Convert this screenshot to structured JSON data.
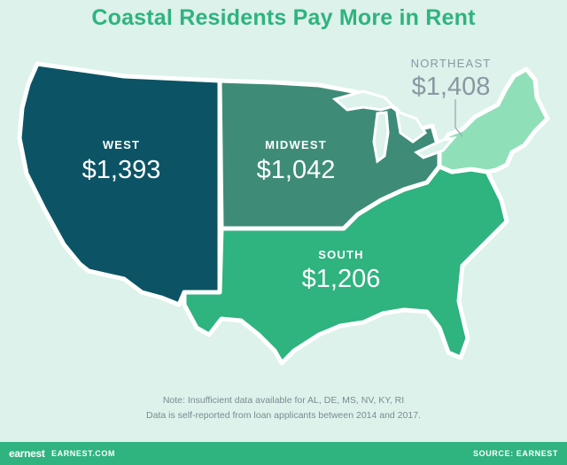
{
  "title": "Coastal Residents Pay More in Rent",
  "regions": {
    "west": {
      "name": "WEST",
      "value": "$1,393",
      "color": "#0c5465"
    },
    "midwest": {
      "name": "MIDWEST",
      "value": "$1,042",
      "color": "#3e8c78"
    },
    "south": {
      "name": "SOUTH",
      "value": "$1,206",
      "color": "#2fb37f"
    },
    "northeast": {
      "name": "NORTHEAST",
      "value": "$1,408",
      "color": "#8fe0b9"
    }
  },
  "notes": {
    "line1": "Note: Insufficient data available for AL, DE, MS, NV, KY, RI",
    "line2": "Data is self-reported from loan applicants between 2014 and 2017."
  },
  "footer": {
    "logo": "earnest",
    "site": "EARNEST.COM",
    "source": "SOURCE: EARNEST"
  }
}
